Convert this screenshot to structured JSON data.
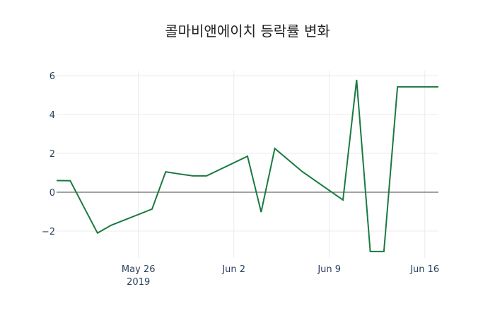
{
  "chart_data": {
    "type": "line",
    "title": "콜마비앤에이치 등락률 변화",
    "xlabel": "",
    "ylabel": "",
    "x": [
      "2019-05-20",
      "2019-05-21",
      "2019-05-22",
      "2019-05-23",
      "2019-05-24",
      "2019-05-27",
      "2019-05-28",
      "2019-05-29",
      "2019-05-30",
      "2019-05-31",
      "2019-06-03",
      "2019-06-04",
      "2019-06-05",
      "2019-06-07",
      "2019-06-10",
      "2019-06-11",
      "2019-06-12",
      "2019-06-13",
      "2019-06-14",
      "2019-06-17"
    ],
    "series": [
      {
        "name": "등락률",
        "color": "#1a7a40",
        "values": [
          0.6,
          0.59,
          -0.76,
          -2.1,
          -1.7,
          -0.87,
          1.05,
          0.94,
          0.84,
          0.84,
          1.85,
          -1.02,
          2.25,
          1.07,
          -0.4,
          5.78,
          -3.05,
          -3.05,
          5.42,
          5.42
        ]
      }
    ],
    "x_ticks": [
      {
        "date": "2019-05-26",
        "label": "May 26",
        "sublabel": "2019"
      },
      {
        "date": "2019-06-02",
        "label": "Jun 2"
      },
      {
        "date": "2019-06-09",
        "label": "Jun 9"
      },
      {
        "date": "2019-06-16",
        "label": "Jun 16"
      }
    ],
    "y_ticks": [
      6,
      4,
      2,
      0,
      -2
    ],
    "y_tick_labels": [
      "6",
      "4",
      "2",
      "0",
      "−2"
    ],
    "ylim": [
      -3.3,
      6.3
    ],
    "xlim": [
      "2019-05-20",
      "2019-06-17"
    ],
    "grid": true,
    "legend": false
  }
}
